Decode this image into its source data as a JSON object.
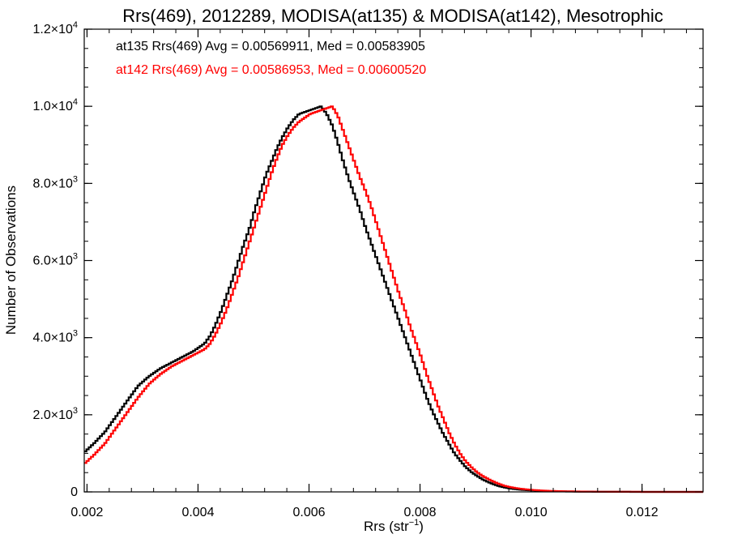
{
  "chart_data": {
    "type": "line",
    "title": "Rrs(469), 2012289, MODISA(at135) & MODISA(at142), Mesotrophic",
    "xlabel": "Rrs (str⁻¹)",
    "ylabel": "Number of Observations",
    "xlim": [
      0.00195,
      0.0131
    ],
    "ylim": [
      0,
      12000
    ],
    "grid": false,
    "x_ticks": [
      {
        "value": 0.002,
        "label": "0.002"
      },
      {
        "value": 0.004,
        "label": "0.004"
      },
      {
        "value": 0.006,
        "label": "0.006"
      },
      {
        "value": 0.008,
        "label": "0.008"
      },
      {
        "value": 0.01,
        "label": "0.010"
      },
      {
        "value": 0.012,
        "label": "0.012"
      }
    ],
    "y_ticks": [
      {
        "value": 0,
        "mantissa": "0",
        "exp": ""
      },
      {
        "value": 2000,
        "mantissa": "2.0×10",
        "exp": "3"
      },
      {
        "value": 4000,
        "mantissa": "4.0×10",
        "exp": "3"
      },
      {
        "value": 6000,
        "mantissa": "6.0×10",
        "exp": "3"
      },
      {
        "value": 8000,
        "mantissa": "8.0×10",
        "exp": "3"
      },
      {
        "value": 10000,
        "mantissa": "1.0×10",
        "exp": "4"
      },
      {
        "value": 12000,
        "mantissa": "1.2×10",
        "exp": "4"
      }
    ],
    "annotations": [
      {
        "text": "at135 Rrs(469) Avg = 0.00569911, Med = 0.00583905",
        "color": "#000000"
      },
      {
        "text": "at142 Rrs(469) Avg = 0.00586953, Med = 0.00600520",
        "color": "#ff0000"
      }
    ],
    "series": [
      {
        "color": "#000000",
        "x": [
          0.00195,
          0.0021,
          0.0023,
          0.0025,
          0.0027,
          0.0029,
          0.0031,
          0.0033,
          0.0035,
          0.0037,
          0.0039,
          0.0041,
          0.0042,
          0.0043,
          0.0044,
          0.0045,
          0.0046,
          0.0047,
          0.0048,
          0.0049,
          0.005,
          0.0051,
          0.0052,
          0.0053,
          0.0054,
          0.0055,
          0.0056,
          0.0057,
          0.0058,
          0.0059,
          0.006,
          0.0061,
          0.0062,
          0.0063,
          0.0064,
          0.0065,
          0.0066,
          0.0067,
          0.0068,
          0.0069,
          0.007,
          0.0071,
          0.0072,
          0.0073,
          0.0074,
          0.0075,
          0.0076,
          0.0077,
          0.0078,
          0.0079,
          0.008,
          0.0081,
          0.0082,
          0.0083,
          0.0084,
          0.0085,
          0.0086,
          0.0087,
          0.0088,
          0.0089,
          0.009,
          0.0091,
          0.0092,
          0.0093,
          0.0094,
          0.0095,
          0.0096,
          0.0097,
          0.0098,
          0.0099,
          0.01,
          0.0101,
          0.0102,
          0.0103,
          0.0104,
          0.0106,
          0.0108,
          0.011,
          0.0112,
          0.0114,
          0.0116,
          0.0118,
          0.012,
          0.0124,
          0.0128,
          0.0131
        ],
        "y": [
          1050,
          1250,
          1550,
          1950,
          2350,
          2750,
          3000,
          3200,
          3350,
          3500,
          3650,
          3850,
          4050,
          4350,
          4700,
          5100,
          5500,
          5950,
          6400,
          6800,
          7300,
          7750,
          8200,
          8550,
          8900,
          9200,
          9450,
          9650,
          9800,
          9850,
          9900,
          9950,
          10000,
          9800,
          9500,
          9050,
          8550,
          8100,
          7700,
          7300,
          6850,
          6450,
          6050,
          5650,
          5250,
          4850,
          4450,
          4050,
          3650,
          3250,
          2850,
          2450,
          2100,
          1800,
          1500,
          1250,
          1000,
          820,
          650,
          520,
          420,
          330,
          260,
          200,
          150,
          115,
          90,
          70,
          55,
          45,
          38,
          30,
          25,
          20,
          17,
          12,
          9,
          6,
          4,
          3,
          2,
          1,
          1,
          0,
          0,
          0
        ]
      },
      {
        "color": "#ff0000",
        "x": [
          0.00195,
          0.0021,
          0.0023,
          0.0025,
          0.0027,
          0.0029,
          0.0031,
          0.0033,
          0.0035,
          0.0037,
          0.0039,
          0.0041,
          0.0042,
          0.0043,
          0.0044,
          0.0045,
          0.0046,
          0.0047,
          0.0048,
          0.0049,
          0.005,
          0.0051,
          0.0052,
          0.0053,
          0.0054,
          0.0055,
          0.0056,
          0.0057,
          0.0058,
          0.0059,
          0.006,
          0.0061,
          0.0062,
          0.0063,
          0.0064,
          0.0065,
          0.0066,
          0.0067,
          0.0068,
          0.0069,
          0.007,
          0.0071,
          0.0072,
          0.0073,
          0.0074,
          0.0075,
          0.0076,
          0.0077,
          0.0078,
          0.0079,
          0.008,
          0.0081,
          0.0082,
          0.0083,
          0.0084,
          0.0085,
          0.0086,
          0.0087,
          0.0088,
          0.0089,
          0.009,
          0.0091,
          0.0092,
          0.0093,
          0.0094,
          0.0095,
          0.0096,
          0.0097,
          0.0098,
          0.0099,
          0.01,
          0.0101,
          0.0102,
          0.0103,
          0.0104,
          0.0106,
          0.0108,
          0.011,
          0.0112,
          0.0114,
          0.0116,
          0.0118,
          0.012,
          0.0124,
          0.0128,
          0.0131
        ],
        "y": [
          750,
          950,
          1250,
          1650,
          2050,
          2450,
          2800,
          3050,
          3250,
          3400,
          3550,
          3700,
          3850,
          4100,
          4400,
          4750,
          5150,
          5550,
          6000,
          6450,
          6900,
          7350,
          7800,
          8250,
          8650,
          9000,
          9250,
          9450,
          9600,
          9700,
          9800,
          9850,
          9900,
          9950,
          10000,
          9750,
          9350,
          8950,
          8550,
          8150,
          7800,
          7400,
          6950,
          6500,
          6050,
          5600,
          5150,
          4750,
          4300,
          3900,
          3500,
          3050,
          2650,
          2250,
          1900,
          1550,
          1250,
          1000,
          800,
          650,
          520,
          420,
          340,
          270,
          210,
          160,
          125,
          100,
          80,
          65,
          52,
          42,
          34,
          28,
          22,
          15,
          10,
          7,
          5,
          3,
          2,
          2,
          1,
          1,
          0,
          0
        ]
      }
    ]
  }
}
